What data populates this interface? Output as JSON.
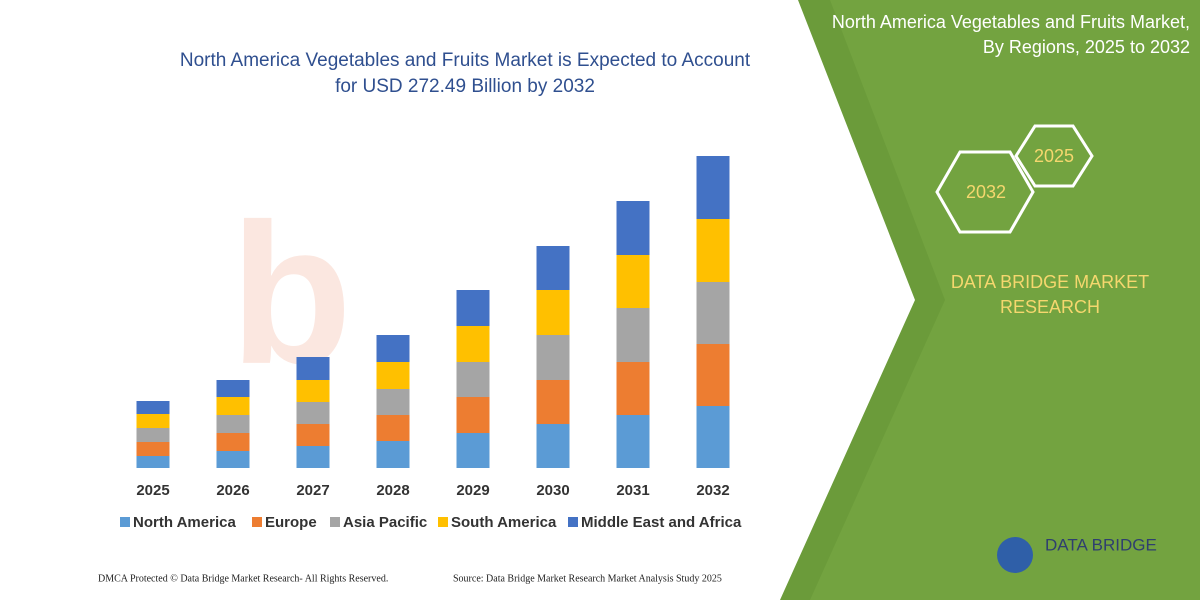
{
  "chart_data": {
    "type": "bar",
    "stacked": true,
    "title": "North America Vegetables and Fruits Market is Expected to Account for USD 272.49 Billion by 2032",
    "categories": [
      "2025",
      "2026",
      "2027",
      "2028",
      "2029",
      "2030",
      "2031",
      "2032"
    ],
    "series": [
      {
        "name": "North America",
        "color": "#5b9bd5",
        "values": [
          12,
          17,
          22,
          27,
          35,
          44,
          53,
          62
        ]
      },
      {
        "name": "Europe",
        "color": "#ed7d31",
        "values": [
          14,
          18,
          22,
          26,
          36,
          44,
          53,
          62
        ]
      },
      {
        "name": "Asia Pacific",
        "color": "#a5a5a5",
        "values": [
          14,
          18,
          22,
          26,
          35,
          45,
          54,
          62
        ]
      },
      {
        "name": "South America",
        "color": "#ffc000",
        "values": [
          14,
          18,
          22,
          27,
          36,
          45,
          53,
          63
        ]
      },
      {
        "name": "Middle East and Africa",
        "color": "#4472c4",
        "values": [
          13,
          17,
          23,
          27,
          36,
          44,
          54,
          63
        ]
      }
    ]
  },
  "side_panel": {
    "title": "North America Vegetables and Fruits Market, By Regions, 2025 to 2032",
    "badges": [
      "2032",
      "2025"
    ],
    "brand": "DATA BRIDGE MARKET RESEARCH"
  },
  "logo": "DATA BRIDGE",
  "footer": {
    "left": "DMCA Protected © Data Bridge Market Research-  All Rights Reserved.",
    "right": "Source: Data Bridge Market Research  Market Analysis Study 2025"
  }
}
